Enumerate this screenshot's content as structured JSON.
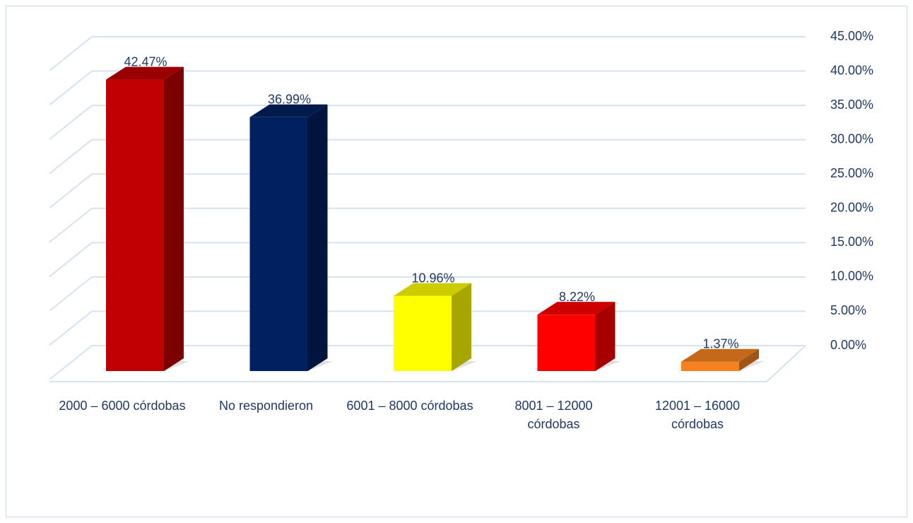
{
  "chart_data": {
    "type": "bar3d",
    "categories": [
      "2000 – 6000 córdobas",
      "No respondieron",
      "6001 – 8000 córdobas",
      "8001 – 12000 córdobas",
      "12001 – 16000 córdobas"
    ],
    "values": [
      42.47,
      36.99,
      10.96,
      8.22,
      1.37
    ],
    "value_labels": [
      "42.47%",
      "36.99%",
      "10.96%",
      "8.22%",
      "1.37%"
    ],
    "colors": [
      "#c00000",
      "#002060",
      "#ffff00",
      "#ff0000",
      "#f5821f"
    ],
    "ylim": [
      0,
      45
    ],
    "yticks": [
      {
        "value": 0,
        "label": "0.00%"
      },
      {
        "value": 5,
        "label": "5.00%"
      },
      {
        "value": 10,
        "label": "10.00%"
      },
      {
        "value": 15,
        "label": "15.00%"
      },
      {
        "value": 20,
        "label": "20.00%"
      },
      {
        "value": 25,
        "label": "25.00%"
      },
      {
        "value": 30,
        "label": "30.00%"
      },
      {
        "value": 35,
        "label": "35.00%"
      },
      {
        "value": 40,
        "label": "40.00%"
      },
      {
        "value": 45,
        "label": "45.00%"
      }
    ],
    "grid": true,
    "yaxis_side": "right"
  }
}
